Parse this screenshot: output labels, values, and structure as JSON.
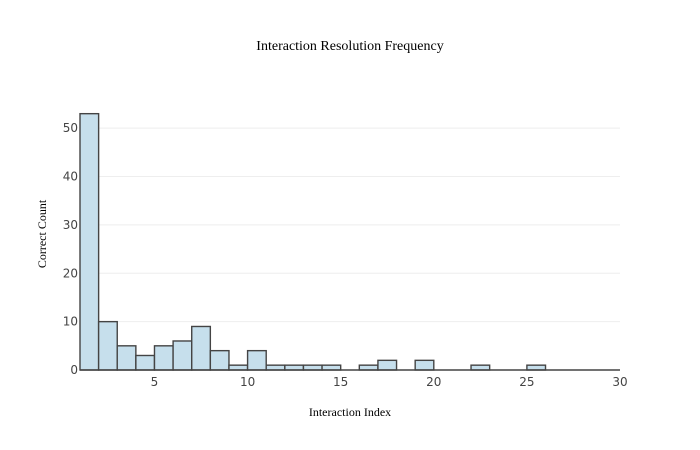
{
  "chart_data": {
    "type": "bar",
    "title": "Interaction Resolution Frequency",
    "xlabel": "Interaction Index",
    "ylabel": "Correct Count",
    "bin_width": 1,
    "x_start": 1,
    "xlim": [
      1,
      30
    ],
    "ylim": [
      0,
      55
    ],
    "x_ticks": [
      5,
      10,
      15,
      20,
      25,
      30
    ],
    "y_ticks": [
      0,
      10,
      20,
      30,
      40,
      50
    ],
    "grid": true,
    "values": [
      53,
      10,
      5,
      3,
      5,
      6,
      9,
      4,
      1,
      4,
      1,
      1,
      1,
      1,
      0,
      1,
      2,
      0,
      2,
      0,
      0,
      1,
      0,
      0,
      1,
      0,
      0,
      0,
      0
    ]
  },
  "colors": {
    "bar_fill": "#c6dfec",
    "bar_stroke": "#444444"
  }
}
